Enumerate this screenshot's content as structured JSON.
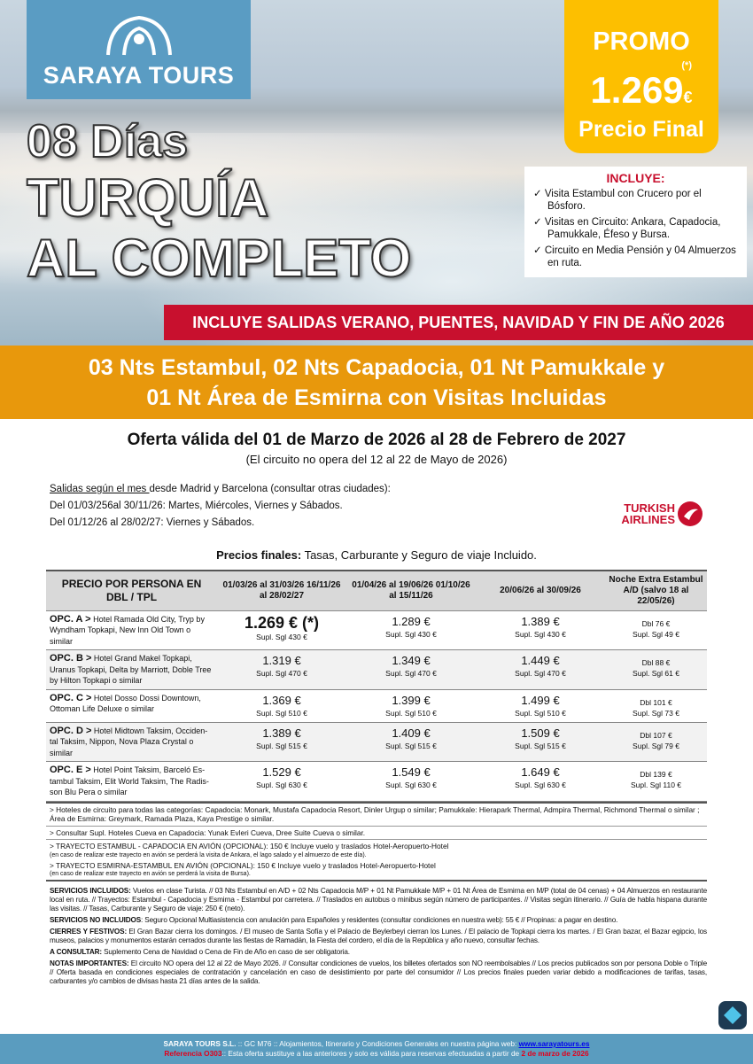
{
  "brand": {
    "name": "SARAYA TOURS"
  },
  "hero": {
    "days": "08 Días",
    "title1": "TURQUÍA",
    "title2": "AL COMPLETO"
  },
  "promo": {
    "label": "PROMO",
    "note": "(*)",
    "price": "1.269",
    "currency": "€",
    "final": "Precio Final"
  },
  "includes": {
    "heading": "INCLUYE:",
    "items": [
      "Visita Estambul con Crucero por el Bósforo.",
      "Visitas en Circuito: Ankara, Capadocia, Pamukkale, Éfeso y Bursa.",
      "Circuito en Media Pensión y 04 Almuerzos en ruta."
    ]
  },
  "red_band": "INCLUYE SALIDAS VERANO, PUENTES, NAVIDAD Y FIN DE AÑO 2026",
  "itinerary": {
    "line1": "03 Nts Estambul, 02 Nts Capadocia, 01 Nt Pamukkale y",
    "line2": "01 Nt Área de Esmirna con Visitas Incluidas"
  },
  "offer": {
    "title": "Oferta válida del 01 de Marzo de 2026 al 28 de Febrero de 2027",
    "subtitle": "(El circuito no opera del 12 al 22 de Mayo de 2026)"
  },
  "salidas": {
    "intro_u": "Salidas según el mes ",
    "intro": "desde Madrid y Barcelona (consultar otras ciudades):",
    "line1": "Del 01/03/256al 30/11/26: Martes, Miércoles, Viernes y Sábados.",
    "line2": "Del 01/12/26 al 28/02/27: Viernes y Sábados."
  },
  "airline": {
    "name1": "TURKISH",
    "name2": "AIRLINES"
  },
  "precios_finales": {
    "label": "Precios finales:",
    "text": " Tasas, Carburante y Seguro de viaje Incluido."
  },
  "table": {
    "headers": [
      "PRECIO POR PERSONA EN DBL / TPL",
      "01/03/26 al 31/03/26 16/11/26 al  28/02/27",
      "01/04/26 al 19/06/26 01/10/26 al 15/11/26",
      "20/06/26 al 30/09/26",
      "Noche Extra Estambul A/D (salvo 18 al 22/05/26)"
    ],
    "rows": [
      {
        "opt": "OPC. A >",
        "hotels": " Hotel Ramada Old City, Tryp by Wyndham Topkapi, New Inn Old Town o similar",
        "prices": [
          "1.269 € (*)",
          "1.289 €",
          "1.389 €"
        ],
        "supl": [
          "Supl. Sgl 430 €",
          "Supl. Sgl 430 €",
          "Supl. Sgl 430 €"
        ],
        "extra": "Dbl 76 €",
        "extra_supl": "Supl. Sgl 49 €"
      },
      {
        "opt": "OPC. B >",
        "hotels": " Hotel Grand Makel Topkapi, Uranus Topkapi, Delta by Marriott, Doble Tree by Hilton Topkapi o similar",
        "prices": [
          "1.319 €",
          "1.349 €",
          "1.449 €"
        ],
        "supl": [
          "Supl. Sgl 470 €",
          "Supl. Sgl 470 €",
          "Supl. Sgl 470 €"
        ],
        "extra": "Dbl 88 €",
        "extra_supl": "Supl. Sgl 61 €"
      },
      {
        "opt": "OPC. C >",
        "hotels": " Hotel Dosso Dossi Downtown, Ottoman Life Deluxe o similar",
        "prices": [
          "1.369 €",
          "1.399 €",
          "1.499 €"
        ],
        "supl": [
          "Supl. Sgl 510 €",
          "Supl. Sgl 510 €",
          "Supl. Sgl 510 €"
        ],
        "extra": "Dbl 101 €",
        "extra_supl": "Supl. Sgl 73 €"
      },
      {
        "opt": "OPC. D >",
        "hotels": " Hotel Midtown Taksim, Occiden-tal Taksim, Nippon, Nova Plaza Crystal o similar",
        "prices": [
          "1.389 €",
          "1.409 €",
          "1.509 €"
        ],
        "supl": [
          "Supl. Sgl 515 €",
          "Supl. Sgl 515 €",
          "Supl. Sgl 515 €"
        ],
        "extra": "Dbl 107 €",
        "extra_supl": "Supl. Sgl 79 €"
      },
      {
        "opt": "OPC. E >",
        "hotels": " Hotel Point Taksim, Barceló Es-tambul Taksim, Elit World Taksim, The Radis-son Blu Pera o similar",
        "prices": [
          "1.529 €",
          "1.549 €",
          "1.649 €"
        ],
        "supl": [
          "Supl. Sgl 630 €",
          "Supl. Sgl 630 €",
          "Supl. Sgl 630 €"
        ],
        "extra": "Dbl 139 €",
        "extra_supl": "Supl. Sgl 110 €"
      }
    ]
  },
  "notes": {
    "hoteles": "> Hoteles de circuito para todas las categorías: Capadocia: Monark, Mustafa Capadocia Resort, Dinler Urgup o similar; Pamukkale: Hierapark Thermal, Admpira Thermal, Richmond Thermal o similar ; Área de Esmirna: Greymark, Ramada Plaza, Kaya Prestige o similar.",
    "cueva": "> Consultar Supl. Hoteles Cueva en Capadocia: Yunak Evleri Cueva, Dree Suite Cueva o similar.",
    "trayecto1": "> TRAYECTO ESTAMBUL - CAPADOCIA EN AVIÓN (OPCIONAL): 150 € Incluye vuelo y traslados Hotel-Aeropuerto-Hotel",
    "trayecto1_note": "(en caso de realizar este trayecto en avión se perderá la visita de Ankara, el lago salado y el almuerzo de este día).",
    "trayecto2": "> TRAYECTO ESMIRNA-ESTAMBUL EN AVIÓN (OPCIONAL): 150 € Incluye vuelo y traslados Hotel-Aeropuerto-Hotel",
    "trayecto2_note": "(en caso de realizar este trayecto en avión se perderá la visita de Bursa)."
  },
  "legal": [
    {
      "label": "SERVICIOS INCLUIDOS:",
      "text": " Vuelos en clase Turista. // 03 Nts Estambul en A/D + 02 Nts Capadocia M/P + 01 Nt Pamukkale M/P + 01 Nt Área de Esmirna en M/P (total de 04 cenas) + 04 Almuerzos en restaurante local en ruta. // Trayectos: Estambul - Capadocia y Esmirna - Estambul por carretera. // Traslados en autobus o minibus según número de participantes. // Visitas según itinerario. // Guía de habla hispana durante las visitas. // Tasas, Carburante y Seguro de viaje: 250 € (neto)."
    },
    {
      "label": "SERVICIOS NO INCLUIDOS",
      "text": ": Seguro Opcional Multiasistencia con anulación para Españoles y residentes (consultar condiciones en nuestra web): 55 € // Propinas: a pagar en destino."
    },
    {
      "label": "CIERRES Y FESTIVOS:",
      "text": " El Gran Bazar cierra los domingos. / El museo de Santa Sofía y el Palacio de Beylerbeyi cierran los Lunes. / El palacio de Topkapi cierra los martes. / El Gran bazar, el Bazar egipcio, los museos, palacios y monumentos estarán cerrados durante las fiestas de Ramadán, la Fiesta del cordero, el día de la República y año nuevo, consultar fechas."
    },
    {
      "label": "A CONSULTAR:",
      "text": " Suplemento Cena de Navidad o Cena de Fin de Año en caso de ser obligatoria."
    },
    {
      "label": "NOTAS IMPORTANTES:",
      "text": " El circuito NO opera del 12 al 22 de Mayo 2026. // Consultar condiciones de vuelos, los billetes ofertados son NO reembolsables // Los precios publicados son por persona Doble o Triple // Oferta basada en condiciones especiales de contratación y cancelación en caso de desistimiento por parte del consumidor // Los precios finales pueden variar debido a modificaciones de tarifas, tasas, carburantes y/o cambios de divisas hasta 21 días antes de la salida."
    }
  ],
  "footer": {
    "company": "SARAYA TOURS S.L.",
    "text1": " :: GC M76 ::  Alojamientos, Itinerario y Condiciones Generales en nuestra página web:  ",
    "link": "www.sarayatours.es",
    "ref": "Referencia O303",
    "text2": ":: Esta oferta sustituye a las anteriores y solo es válida para reservas efectuadas a partir de ",
    "date": "2 de marzo de 2026"
  },
  "colors": {
    "orange": "#e8980c",
    "promo": "#fdbf00",
    "red": "#c8102e",
    "blue": "#5a9cc3"
  }
}
